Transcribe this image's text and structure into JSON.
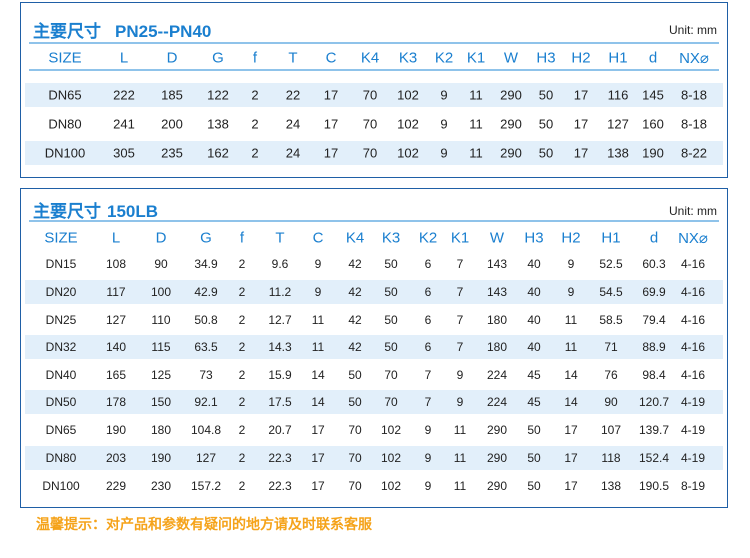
{
  "colors": {
    "accent": "#1a7fcf",
    "border": "#1f5fa6",
    "stripe": "#e2effa",
    "notice": "#f5a31a"
  },
  "headers": [
    "SIZE",
    "L",
    "D",
    "G",
    "f",
    "T",
    "C",
    "K4",
    "K3",
    "K2",
    "K1",
    "W",
    "H3",
    "H2",
    "H1",
    "d",
    "NX⌀"
  ],
  "table1": {
    "title": "主要尺寸",
    "subtitle": "PN25--PN40",
    "unit": "Unit: mm",
    "rows": [
      [
        "DN65",
        "222",
        "185",
        "122",
        "2",
        "22",
        "17",
        "70",
        "102",
        "9",
        "11",
        "290",
        "50",
        "17",
        "116",
        "145",
        "8-18"
      ],
      [
        "DN80",
        "241",
        "200",
        "138",
        "2",
        "24",
        "17",
        "70",
        "102",
        "9",
        "11",
        "290",
        "50",
        "17",
        "127",
        "160",
        "8-18"
      ],
      [
        "DN100",
        "305",
        "235",
        "162",
        "2",
        "24",
        "17",
        "70",
        "102",
        "9",
        "11",
        "290",
        "50",
        "17",
        "138",
        "190",
        "8-22"
      ]
    ]
  },
  "table2": {
    "title": "主要尺寸",
    "subtitle": "150LB",
    "unit": "Unit: mm",
    "rows": [
      [
        "DN15",
        "108",
        "90",
        "34.9",
        "2",
        "9.6",
        "9",
        "42",
        "50",
        "6",
        "7",
        "143",
        "40",
        "9",
        "52.5",
        "60.3",
        "4-16"
      ],
      [
        "DN20",
        "117",
        "100",
        "42.9",
        "2",
        "11.2",
        "9",
        "42",
        "50",
        "6",
        "7",
        "143",
        "40",
        "9",
        "54.5",
        "69.9",
        "4-16"
      ],
      [
        "DN25",
        "127",
        "110",
        "50.8",
        "2",
        "12.7",
        "11",
        "42",
        "50",
        "6",
        "7",
        "180",
        "40",
        "11",
        "58.5",
        "79.4",
        "4-16"
      ],
      [
        "DN32",
        "140",
        "115",
        "63.5",
        "2",
        "14.3",
        "11",
        "42",
        "50",
        "6",
        "7",
        "180",
        "40",
        "11",
        "71",
        "88.9",
        "4-16"
      ],
      [
        "DN40",
        "165",
        "125",
        "73",
        "2",
        "15.9",
        "14",
        "50",
        "70",
        "7",
        "9",
        "224",
        "45",
        "14",
        "76",
        "98.4",
        "4-16"
      ],
      [
        "DN50",
        "178",
        "150",
        "92.1",
        "2",
        "17.5",
        "14",
        "50",
        "70",
        "7",
        "9",
        "224",
        "45",
        "14",
        "90",
        "120.7",
        "4-19"
      ],
      [
        "DN65",
        "190",
        "180",
        "104.8",
        "2",
        "20.7",
        "17",
        "70",
        "102",
        "9",
        "11",
        "290",
        "50",
        "17",
        "107",
        "139.7",
        "4-19"
      ],
      [
        "DN80",
        "203",
        "190",
        "127",
        "2",
        "22.3",
        "17",
        "70",
        "102",
        "9",
        "11",
        "290",
        "50",
        "17",
        "118",
        "152.4",
        "4-19"
      ],
      [
        "DN100",
        "229",
        "230",
        "157.2",
        "2",
        "22.3",
        "17",
        "70",
        "102",
        "9",
        "11",
        "290",
        "50",
        "17",
        "138",
        "190.5",
        "8-19"
      ]
    ]
  },
  "footer": {
    "notice": "温馨提示：对产品和参数有疑问的地方请及时联系客服"
  }
}
